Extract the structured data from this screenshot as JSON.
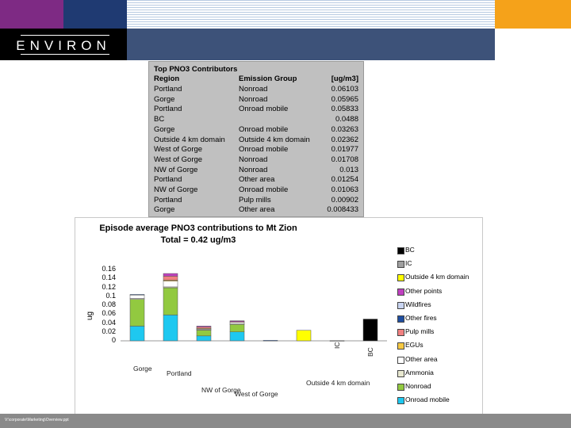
{
  "header": {
    "logo_text": "ENVIRON"
  },
  "footer": {
    "path": "V:\\corporate\\Marketing\\Overview.ppt"
  },
  "table": {
    "title": "Top PNO3 Contributors",
    "headers": [
      "Region",
      "Emission Group",
      "[ug/m3]"
    ],
    "rows": [
      {
        "region": "Portland",
        "group": "Nonroad",
        "value": "0.06103"
      },
      {
        "region": "Gorge",
        "group": "Nonroad",
        "value": "0.05965"
      },
      {
        "region": "Portland",
        "group": "Onroad mobile",
        "value": "0.05833"
      },
      {
        "region": "BC",
        "group": "",
        "value": "0.0488"
      },
      {
        "region": "Gorge",
        "group": "Onroad mobile",
        "value": "0.03263"
      },
      {
        "region": "Outside 4 km domain",
        "group": "Outside 4 km domain",
        "value": "0.02362"
      },
      {
        "region": "West of Gorge",
        "group": "Onroad mobile",
        "value": "0.01977"
      },
      {
        "region": "West of Gorge",
        "group": "Nonroad",
        "value": "0.01708"
      },
      {
        "region": "NW of Gorge",
        "group": "Nonroad",
        "value": "0.013"
      },
      {
        "region": "Portland",
        "group": "Other area",
        "value": "0.01254"
      },
      {
        "region": "NW of Gorge",
        "group": "Onroad mobile",
        "value": "0.01063"
      },
      {
        "region": "Portland",
        "group": "Pulp mills",
        "value": "0.00902"
      },
      {
        "region": "Gorge",
        "group": "Other area",
        "value": "0.008433"
      }
    ]
  },
  "chart_data": {
    "type": "bar",
    "stacked": true,
    "title": "Episode average PNO3 contributions to Mt Zion",
    "subtitle": "Total = 0.42 ug/m3",
    "ylabel": "ug",
    "ylim": [
      0,
      0.16
    ],
    "yticks": [
      "0",
      "0.02",
      "0.04",
      "0.06",
      "0.08",
      "0.1",
      "0.12",
      "0.14",
      "0.16"
    ],
    "categories": [
      "Gorge",
      "Portland",
      "NW of Gorge",
      "West of Gorge",
      "",
      "Outside 4 km domain",
      "IC",
      "BC"
    ],
    "legend_position": "right",
    "series": [
      {
        "name": "Onroad mobile",
        "color": "#1ec8f0",
        "values": [
          0.033,
          0.058,
          0.011,
          0.02,
          0,
          0,
          0,
          0
        ]
      },
      {
        "name": "Nonroad",
        "color": "#92c940",
        "values": [
          0.06,
          0.061,
          0.013,
          0.017,
          0,
          0,
          0,
          0
        ]
      },
      {
        "name": "Ammonia",
        "color": "#e8e8d0",
        "values": [
          0.002,
          0.002,
          0.001,
          0.001,
          0,
          0,
          0,
          0
        ]
      },
      {
        "name": "Other area",
        "color": "#ffffff",
        "values": [
          0.008,
          0.013,
          0.002,
          0.004,
          0,
          0,
          0,
          0
        ]
      },
      {
        "name": "EGUs",
        "color": "#f5c842",
        "values": [
          0,
          0.002,
          0.001,
          0,
          0,
          0,
          0,
          0
        ]
      },
      {
        "name": "Pulp mills",
        "color": "#f08080",
        "values": [
          0,
          0.009,
          0.003,
          0.001,
          0,
          0,
          0,
          0
        ]
      },
      {
        "name": "Other fires",
        "color": "#1f4ea0",
        "values": [
          0.001,
          0,
          0,
          0,
          0.001,
          0,
          0,
          0
        ]
      },
      {
        "name": "Wildfires",
        "color": "#c8d4f0",
        "values": [
          0,
          0,
          0,
          0,
          0,
          0,
          0,
          0
        ]
      },
      {
        "name": "Other points",
        "color": "#c040c0",
        "values": [
          0,
          0.006,
          0.002,
          0.002,
          0,
          0,
          0,
          0
        ]
      },
      {
        "name": "Outside 4 km domain",
        "color": "#ffff00",
        "values": [
          0,
          0,
          0,
          0,
          0,
          0.0236,
          0,
          0
        ]
      },
      {
        "name": "IC",
        "color": "#a0a0a0",
        "values": [
          0,
          0,
          0,
          0,
          0,
          0,
          0.0005,
          0
        ]
      },
      {
        "name": "BC",
        "color": "#000000",
        "values": [
          0,
          0,
          0,
          0,
          0,
          0,
          0,
          0.0488
        ]
      }
    ],
    "legend_entries": [
      "BC",
      "IC",
      "Outside 4 km domain",
      "Other points",
      "Wildfires",
      "Other fires",
      "Pulp mills",
      "EGUs",
      "Other area",
      "Ammonia",
      "Nonroad",
      "Onroad mobile"
    ],
    "legend_colors": [
      "#000000",
      "#a0a0a0",
      "#ffff00",
      "#c040c0",
      "#c8d4f0",
      "#1f4ea0",
      "#f08080",
      "#f5c842",
      "#ffffff",
      "#e8e8d0",
      "#92c940",
      "#1ec8f0"
    ]
  }
}
